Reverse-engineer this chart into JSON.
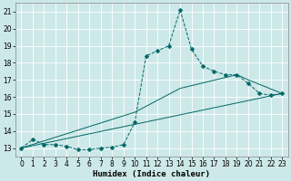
{
  "xlabel": "Humidex (Indice chaleur)",
  "background_color": "#cde8e8",
  "grid_color": "#ffffff",
  "line_color": "#006666",
  "xlim": [
    -0.5,
    23.5
  ],
  "ylim": [
    12.5,
    21.5
  ],
  "xticks": [
    0,
    1,
    2,
    3,
    4,
    5,
    6,
    7,
    8,
    9,
    10,
    11,
    12,
    13,
    14,
    15,
    16,
    17,
    18,
    19,
    20,
    21,
    22,
    23
  ],
  "yticks": [
    13,
    14,
    15,
    16,
    17,
    18,
    19,
    20,
    21
  ],
  "curve_x": [
    0,
    1,
    2,
    3,
    4,
    5,
    6,
    7,
    8,
    9,
    10,
    11,
    12,
    13,
    14,
    15,
    16,
    17,
    18,
    19,
    20,
    21,
    22,
    23
  ],
  "curve_y": [
    13.0,
    13.5,
    13.2,
    13.2,
    13.1,
    12.9,
    12.9,
    13.0,
    13.05,
    13.2,
    14.5,
    18.4,
    18.7,
    19.0,
    21.1,
    18.8,
    17.8,
    17.5,
    17.3,
    17.3,
    16.8,
    16.2,
    16.1,
    16.2
  ],
  "line2_x": [
    0,
    23
  ],
  "line2_y": [
    13.0,
    16.2
  ],
  "line3_x": [
    0,
    10,
    14,
    19,
    20,
    23
  ],
  "line3_y": [
    13.0,
    15.1,
    16.5,
    17.3,
    17.0,
    16.2
  ],
  "marker_style": "D",
  "marker_size": 2.5,
  "font_size_ticks": 5.5,
  "font_size_xlabel": 6.5
}
